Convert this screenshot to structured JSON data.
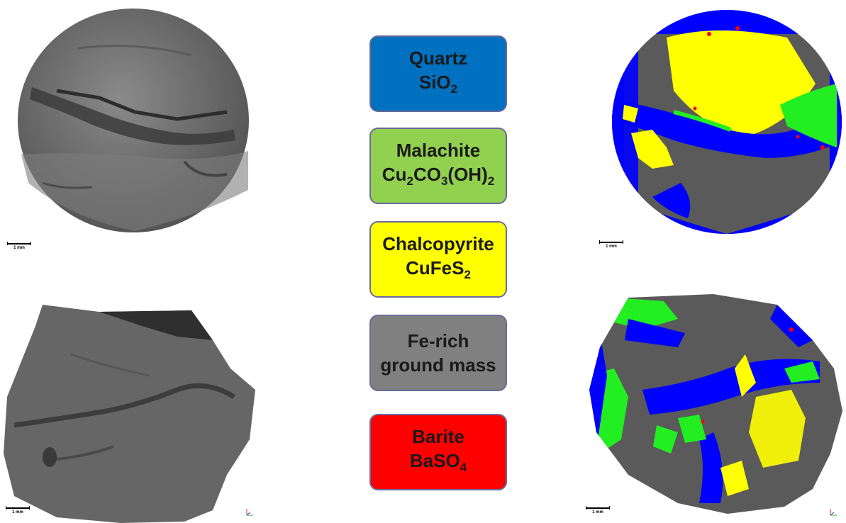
{
  "scale_label": "1 mm",
  "legend": [
    {
      "mineral": "Quartz",
      "formula_parts": [
        {
          "t": "SiO"
        },
        {
          "s": "2"
        }
      ],
      "color": "#0070c0"
    },
    {
      "mineral": "Malachite",
      "formula_parts": [
        {
          "t": "Cu"
        },
        {
          "s": "2"
        },
        {
          "t": "CO"
        },
        {
          "s": "3"
        },
        {
          "t": "(OH)"
        },
        {
          "s": "2"
        }
      ],
      "color": "#92d050"
    },
    {
      "mineral": "Chalcopyrite",
      "formula_parts": [
        {
          "t": "CuFeS"
        },
        {
          "s": "2"
        }
      ],
      "color": "#ffff00"
    },
    {
      "mineral": "Fe-rich",
      "formula_parts": [
        {
          "t": "ground mass"
        }
      ],
      "color": "#808080"
    },
    {
      "mineral": "Barite",
      "formula_parts": [
        {
          "t": "BaSO"
        },
        {
          "s": "4"
        }
      ],
      "color": "#ff0000"
    }
  ],
  "colors": {
    "quartz_phase": "#0000ff",
    "malachite_phase": "#22ee22",
    "chalcopyrite_phase": "#ffff00",
    "barite_phase": "#ff0000",
    "ground_mass_phase": "#5a5a5a",
    "raw_scan_gray": "#6a6a6a"
  }
}
